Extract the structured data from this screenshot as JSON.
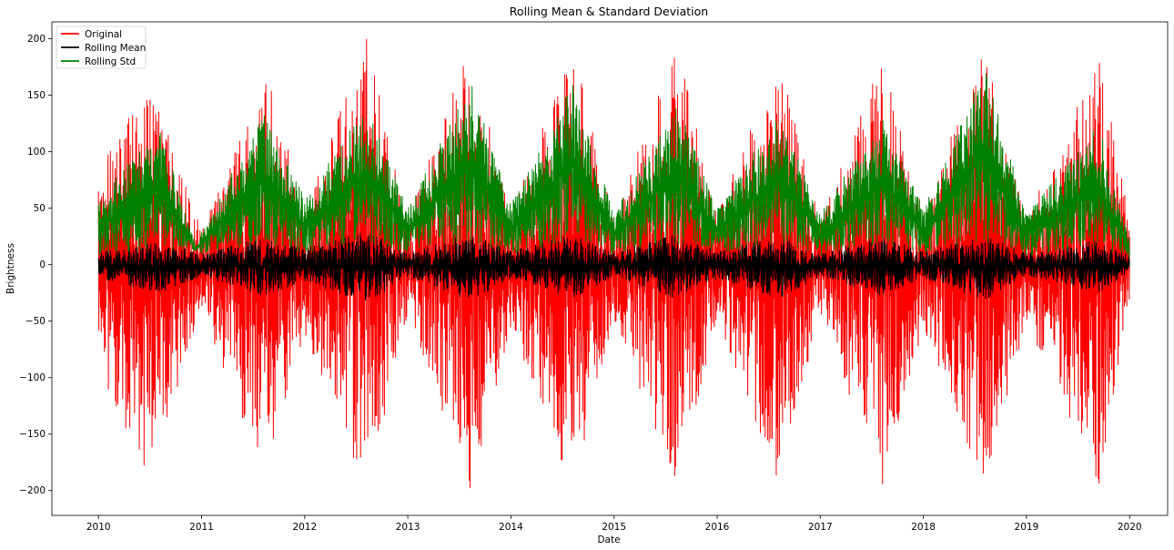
{
  "chart_data": {
    "type": "line",
    "title": "Rolling Mean & Standard Deviation",
    "xlabel": "Date",
    "ylabel": "Brightness",
    "xlim": [
      "2009-07-20",
      "2020-05-15"
    ],
    "ylim": [
      -222,
      215
    ],
    "x_ticks": [
      "2010",
      "2011",
      "2012",
      "2013",
      "2014",
      "2015",
      "2016",
      "2017",
      "2018",
      "2019",
      "2020"
    ],
    "y_ticks": [
      -200,
      -150,
      -100,
      -50,
      0,
      50,
      100,
      150,
      200
    ],
    "x_start": "2010-01-01",
    "x_end": "2020-01-01",
    "grid": false,
    "legend_position": "top-left",
    "series": [
      {
        "name": "Original",
        "color": "#ff0000",
        "envelope_by_year": [
          {
            "x": "2010",
            "upper": 85,
            "lower": -95
          },
          {
            "x": "2010.5",
            "upper": 165,
            "lower": -190
          },
          {
            "x": "2011",
            "upper": 30,
            "lower": -40
          },
          {
            "x": "2011.6",
            "upper": 180,
            "lower": -185
          },
          {
            "x": "2012",
            "upper": 50,
            "lower": -60
          },
          {
            "x": "2012.6",
            "upper": 200,
            "lower": -202
          },
          {
            "x": "2013",
            "upper": 40,
            "lower": -45
          },
          {
            "x": "2013.6",
            "upper": 198,
            "lower": -200
          },
          {
            "x": "2014",
            "upper": 45,
            "lower": -60
          },
          {
            "x": "2014.6",
            "upper": 193,
            "lower": -200
          },
          {
            "x": "2015",
            "upper": 40,
            "lower": -50
          },
          {
            "x": "2015.6",
            "upper": 197,
            "lower": -198
          },
          {
            "x": "2016",
            "upper": 45,
            "lower": -50
          },
          {
            "x": "2016.6",
            "upper": 182,
            "lower": -195
          },
          {
            "x": "2017",
            "upper": 40,
            "lower": -45
          },
          {
            "x": "2017.6",
            "upper": 185,
            "lower": -197
          },
          {
            "x": "2018",
            "upper": 45,
            "lower": -55
          },
          {
            "x": "2018.6",
            "upper": 198,
            "lower": -202
          },
          {
            "x": "2019",
            "upper": 40,
            "lower": -50
          },
          {
            "x": "2019.7",
            "upper": 186,
            "lower": -198
          },
          {
            "x": "2020",
            "upper": 40,
            "lower": -30
          }
        ]
      },
      {
        "name": "Rolling Mean",
        "color": "#000000",
        "envelope_by_year": [
          {
            "x": "2010",
            "upper": 12,
            "lower": -12
          },
          {
            "x": "2010.6",
            "upper": 20,
            "lower": -25
          },
          {
            "x": "2011",
            "upper": 10,
            "lower": -10
          },
          {
            "x": "2011.6",
            "upper": 25,
            "lower": -28
          },
          {
            "x": "2012",
            "upper": 15,
            "lower": -15
          },
          {
            "x": "2012.6",
            "upper": 30,
            "lower": -35
          },
          {
            "x": "2013",
            "upper": 10,
            "lower": -10
          },
          {
            "x": "2013.6",
            "upper": 28,
            "lower": -32
          },
          {
            "x": "2014",
            "upper": 12,
            "lower": -12
          },
          {
            "x": "2014.6",
            "upper": 27,
            "lower": -30
          },
          {
            "x": "2015",
            "upper": 10,
            "lower": -10
          },
          {
            "x": "2015.6",
            "upper": 28,
            "lower": -30
          },
          {
            "x": "2016",
            "upper": 12,
            "lower": -12
          },
          {
            "x": "2016.6",
            "upper": 26,
            "lower": -30
          },
          {
            "x": "2017",
            "upper": 10,
            "lower": -10
          },
          {
            "x": "2017.6",
            "upper": 26,
            "lower": -28
          },
          {
            "x": "2018",
            "upper": 12,
            "lower": -12
          },
          {
            "x": "2018.6",
            "upper": 26,
            "lower": -32
          },
          {
            "x": "2019",
            "upper": 10,
            "lower": -10
          },
          {
            "x": "2019.7",
            "upper": 22,
            "lower": -25
          },
          {
            "x": "2020",
            "upper": 8,
            "lower": -8
          }
        ]
      },
      {
        "name": "Rolling Std",
        "color": "#008000",
        "envelope_by_year": [
          {
            "x": "2010",
            "upper": 60,
            "lower": 8
          },
          {
            "x": "2010.6",
            "upper": 120,
            "lower": 15
          },
          {
            "x": "2010.95",
            "upper": 15,
            "lower": 12
          },
          {
            "x": "2011",
            "upper": 30,
            "lower": 10
          },
          {
            "x": "2011.6",
            "upper": 135,
            "lower": 18
          },
          {
            "x": "2012",
            "upper": 60,
            "lower": 10
          },
          {
            "x": "2012.6",
            "upper": 140,
            "lower": 20
          },
          {
            "x": "2013",
            "upper": 50,
            "lower": 10
          },
          {
            "x": "2013.6",
            "upper": 165,
            "lower": 20
          },
          {
            "x": "2014",
            "upper": 55,
            "lower": 10
          },
          {
            "x": "2014.6",
            "upper": 160,
            "lower": 20
          },
          {
            "x": "2015",
            "upper": 45,
            "lower": 8
          },
          {
            "x": "2015.6",
            "upper": 145,
            "lower": 18
          },
          {
            "x": "2016",
            "upper": 50,
            "lower": 10
          },
          {
            "x": "2016.6",
            "upper": 135,
            "lower": 18
          },
          {
            "x": "2017",
            "upper": 45,
            "lower": 8
          },
          {
            "x": "2017.6",
            "upper": 130,
            "lower": 18
          },
          {
            "x": "2018",
            "upper": 50,
            "lower": 10
          },
          {
            "x": "2018.6",
            "upper": 175,
            "lower": 20
          },
          {
            "x": "2019",
            "upper": 45,
            "lower": 8
          },
          {
            "x": "2019.7",
            "upper": 125,
            "lower": 15
          },
          {
            "x": "2020",
            "upper": 20,
            "lower": 5
          }
        ]
      }
    ]
  }
}
